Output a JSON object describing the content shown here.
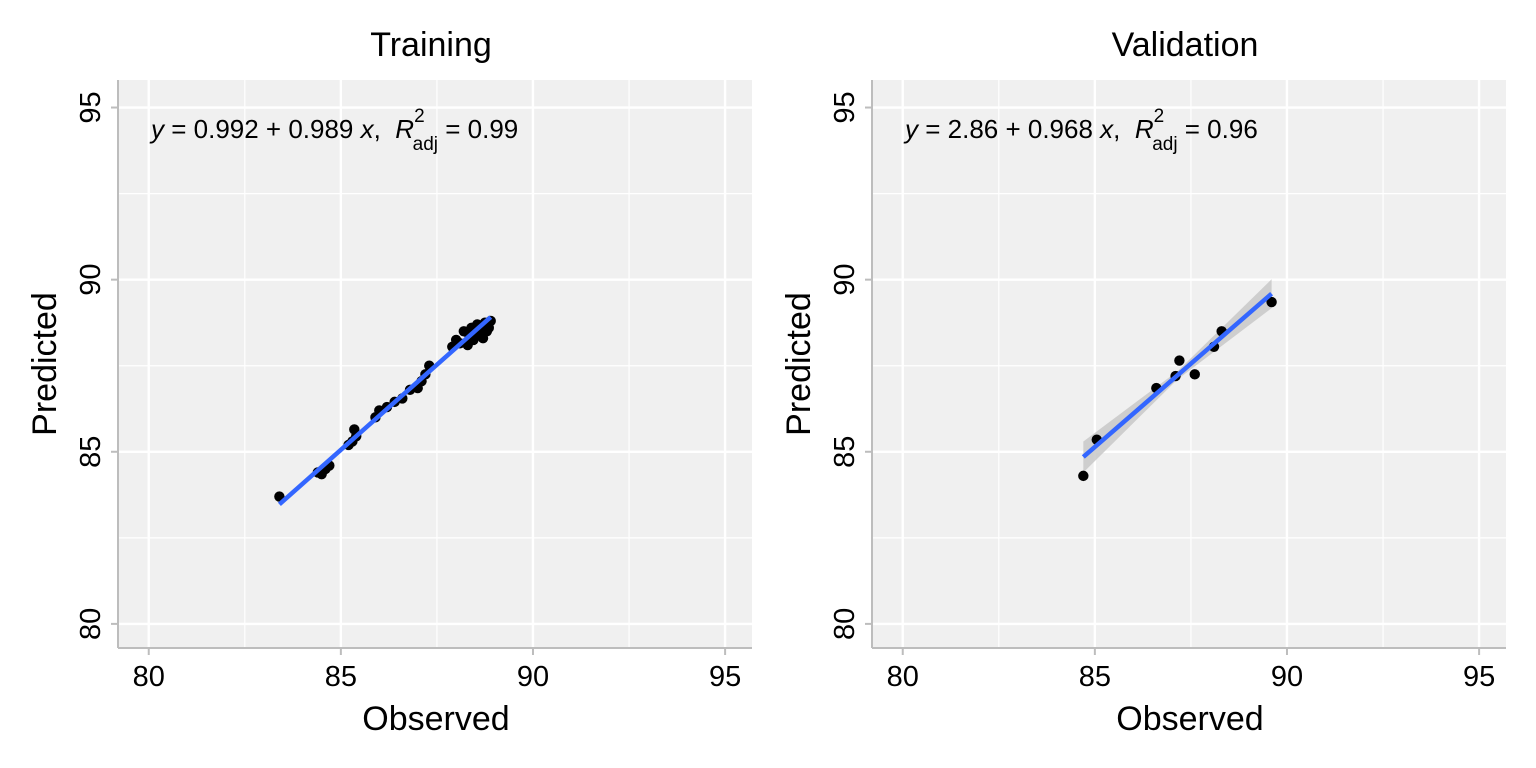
{
  "colors": {
    "panel_bg": "#f0f0f0",
    "grid": "#ffffff",
    "axis": "#bdbdbd",
    "points": "#000000",
    "fit_line": "#3366ff",
    "ci_band": "#c8c8c8"
  },
  "chart_data": [
    {
      "type": "scatter",
      "title": "Training",
      "xlabel": "Observed",
      "ylabel": "Predicted",
      "xlim": [
        79.2,
        95.7
      ],
      "ylim": [
        79.3,
        95.8
      ],
      "xticks": [
        80,
        85,
        90,
        95
      ],
      "yticks": [
        80,
        85,
        90,
        95
      ],
      "xtick_labels": [
        "80",
        "85",
        "90",
        "95"
      ],
      "ytick_labels": [
        "80",
        "85",
        "90",
        "95"
      ],
      "grid": true,
      "annotation": {
        "y": "y",
        "eq": " = 0.992 + 0.989 ",
        "x": "x",
        "sep": ",  ",
        "R": "R",
        "sup": "2",
        "sub": "adj",
        "val": " = 0.99"
      },
      "fit": {
        "intercept": 0.992,
        "slope": 0.989,
        "x_range": [
          83.4,
          88.9
        ]
      },
      "ci_band": false,
      "points": [
        {
          "x": 83.4,
          "y": 83.7
        },
        {
          "x": 84.4,
          "y": 84.4
        },
        {
          "x": 84.5,
          "y": 84.35
        },
        {
          "x": 84.6,
          "y": 84.5
        },
        {
          "x": 84.7,
          "y": 84.6
        },
        {
          "x": 85.2,
          "y": 85.2
        },
        {
          "x": 85.3,
          "y": 85.3
        },
        {
          "x": 85.4,
          "y": 85.45
        },
        {
          "x": 85.35,
          "y": 85.65
        },
        {
          "x": 85.9,
          "y": 86.0
        },
        {
          "x": 86.0,
          "y": 86.2
        },
        {
          "x": 86.2,
          "y": 86.3
        },
        {
          "x": 86.4,
          "y": 86.45
        },
        {
          "x": 86.6,
          "y": 86.55
        },
        {
          "x": 86.8,
          "y": 86.8
        },
        {
          "x": 87.0,
          "y": 86.85
        },
        {
          "x": 87.1,
          "y": 87.05
        },
        {
          "x": 87.2,
          "y": 87.25
        },
        {
          "x": 87.3,
          "y": 87.5
        },
        {
          "x": 87.9,
          "y": 88.05
        },
        {
          "x": 88.0,
          "y": 88.25
        },
        {
          "x": 88.1,
          "y": 88.15
        },
        {
          "x": 88.2,
          "y": 88.5
        },
        {
          "x": 88.3,
          "y": 88.1
        },
        {
          "x": 88.35,
          "y": 88.35
        },
        {
          "x": 88.4,
          "y": 88.6
        },
        {
          "x": 88.45,
          "y": 88.25
        },
        {
          "x": 88.5,
          "y": 88.45
        },
        {
          "x": 88.55,
          "y": 88.7
        },
        {
          "x": 88.6,
          "y": 88.4
        },
        {
          "x": 88.65,
          "y": 88.55
        },
        {
          "x": 88.7,
          "y": 88.3
        },
        {
          "x": 88.75,
          "y": 88.75
        },
        {
          "x": 88.8,
          "y": 88.5
        },
        {
          "x": 88.85,
          "y": 88.6
        },
        {
          "x": 88.9,
          "y": 88.8
        }
      ]
    },
    {
      "type": "scatter",
      "title": "Validation",
      "xlabel": "Observed",
      "ylabel": "Predicted",
      "xlim": [
        79.2,
        95.7
      ],
      "ylim": [
        79.3,
        95.8
      ],
      "xticks": [
        80,
        85,
        90,
        95
      ],
      "yticks": [
        80,
        85,
        90,
        95
      ],
      "xtick_labels": [
        "80",
        "85",
        "90",
        "95"
      ],
      "ytick_labels": [
        "80",
        "85",
        "90",
        "95"
      ],
      "grid": true,
      "annotation": {
        "y": "y",
        "eq": " = 2.86 + 0.968 ",
        "x": "x",
        "sep": ",  ",
        "R": "R",
        "sup": "2",
        "sub": "adj",
        "val": " = 0.96"
      },
      "fit": {
        "intercept": 2.86,
        "slope": 0.968,
        "x_range": [
          84.7,
          89.6
        ]
      },
      "ci_band": true,
      "ci_halfwidth": [
        0.45,
        0.12,
        0.42
      ],
      "points": [
        {
          "x": 84.7,
          "y": 84.3
        },
        {
          "x": 85.05,
          "y": 85.35
        },
        {
          "x": 86.6,
          "y": 86.85
        },
        {
          "x": 87.1,
          "y": 87.2
        },
        {
          "x": 87.2,
          "y": 87.65
        },
        {
          "x": 87.6,
          "y": 87.25
        },
        {
          "x": 88.1,
          "y": 88.05
        },
        {
          "x": 88.3,
          "y": 88.5
        },
        {
          "x": 89.6,
          "y": 89.35
        }
      ]
    }
  ]
}
